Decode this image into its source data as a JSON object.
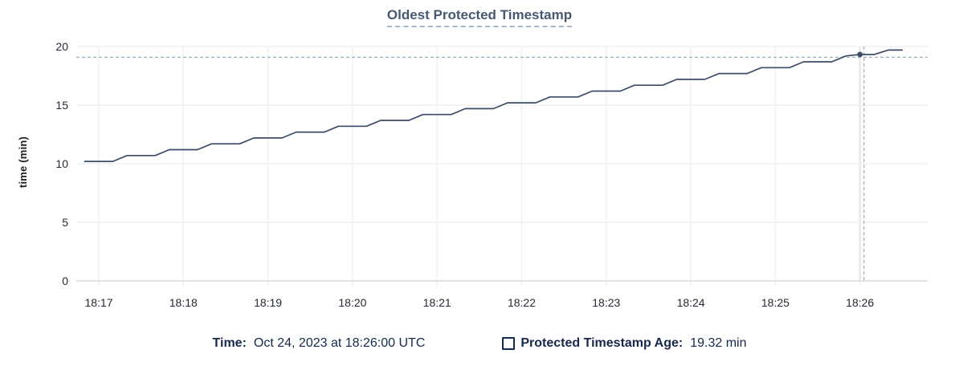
{
  "title": "Oldest Protected Timestamp",
  "chart_data": {
    "type": "line",
    "title": "Oldest Protected Timestamp",
    "xlabel": "",
    "ylabel": "time (min)",
    "ylim": [
      0,
      20
    ],
    "yticks": [
      0,
      5,
      10,
      15,
      20
    ],
    "x_tick_labels": [
      "18:17",
      "18:18",
      "18:19",
      "18:20",
      "18:21",
      "18:22",
      "18:23",
      "18:24",
      "18:25",
      "18:26"
    ],
    "grid": true,
    "legend_position": "bottom",
    "series": [
      {
        "name": "Protected Timestamp Age",
        "unit": "min",
        "start_time": "18:16:50",
        "sample_interval_seconds": 10,
        "values": [
          10.2,
          10.2,
          10.2,
          10.7,
          10.7,
          10.7,
          11.2,
          11.2,
          11.2,
          11.7,
          11.7,
          11.7,
          12.2,
          12.2,
          12.2,
          12.7,
          12.7,
          12.7,
          13.2,
          13.2,
          13.2,
          13.7,
          13.7,
          13.7,
          14.2,
          14.2,
          14.2,
          14.7,
          14.7,
          14.7,
          15.2,
          15.2,
          15.2,
          15.7,
          15.7,
          15.7,
          16.2,
          16.2,
          16.2,
          16.7,
          16.7,
          16.7,
          17.2,
          17.2,
          17.2,
          17.7,
          17.7,
          17.7,
          18.2,
          18.2,
          18.2,
          18.7,
          18.7,
          18.7,
          19.2,
          19.32,
          19.32,
          19.7,
          19.7
        ]
      }
    ],
    "hover": {
      "index": 55,
      "time_tick": "18:26",
      "value": 19.32
    }
  },
  "tooltip": {
    "time_label": "Time:",
    "time_value": "Oct 24, 2023 at 18:26:00 UTC",
    "series_label": "Protected Timestamp Age:",
    "series_value": "19.32 min"
  },
  "colors": {
    "line": "#3c4c66",
    "point": "#3c4c66",
    "title_text": "#475872",
    "axis_text": "#242a35",
    "legend_text": "#16294c",
    "grid_line": "#f0f0f0",
    "axis_zero_line": "#d6d9db",
    "hover_gridline": "#e7e7e7",
    "crosshair": "#9db3be"
  }
}
